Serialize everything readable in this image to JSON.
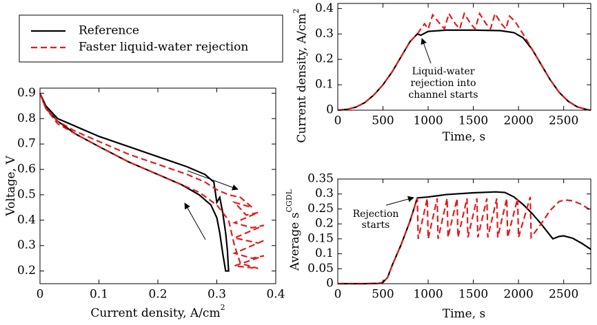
{
  "chart_data": [
    {
      "type": "line",
      "xlabel": "Current density, A/cm",
      "xlabel_sup": "2",
      "ylabel": "Voltage, V",
      "xlim": [
        0,
        0.4
      ],
      "ylim": [
        0.15,
        0.92
      ],
      "xticks": [
        0,
        0.1,
        0.2,
        0.3,
        0.4
      ],
      "yticks": [
        0.2,
        0.3,
        0.4,
        0.5,
        0.6,
        0.7,
        0.8,
        0.9
      ],
      "series": [
        {
          "name": "Reference",
          "color": "#000000",
          "linestyle": "solid",
          "x": [
            0,
            0.01,
            0.03,
            0.06,
            0.1,
            0.15,
            0.2,
            0.25,
            0.28,
            0.295,
            0.3,
            0.305,
            0.31,
            0.315,
            0.318,
            0.32,
            0.315,
            0.31,
            0.305,
            0.3,
            0.29,
            0.27,
            0.24,
            0.2,
            0.15,
            0.1,
            0.06,
            0.03,
            0.01,
            0
          ],
          "values": [
            0.9,
            0.85,
            0.8,
            0.77,
            0.73,
            0.69,
            0.65,
            0.61,
            0.58,
            0.55,
            0.47,
            0.49,
            0.43,
            0.35,
            0.28,
            0.2,
            0.2,
            0.27,
            0.35,
            0.41,
            0.46,
            0.5,
            0.54,
            0.58,
            0.63,
            0.69,
            0.74,
            0.79,
            0.84,
            0.9
          ]
        },
        {
          "name": "Faster liquid-water rejection",
          "color": "#e31a1c",
          "linestyle": "dashed",
          "x": [
            0,
            0.01,
            0.03,
            0.06,
            0.1,
            0.15,
            0.2,
            0.25,
            0.28,
            0.3,
            0.32,
            0.34,
            0.36,
            0.33,
            0.35,
            0.37,
            0.33,
            0.36,
            0.38,
            0.33,
            0.37,
            0.38,
            0.33,
            0.36,
            0.38,
            0.33,
            0.37,
            0.34,
            0.33,
            0.32,
            0.3,
            0.27,
            0.23,
            0.2,
            0.15,
            0.1,
            0.06,
            0.03,
            0.01,
            0
          ],
          "values": [
            0.9,
            0.84,
            0.79,
            0.75,
            0.71,
            0.66,
            0.62,
            0.58,
            0.55,
            0.52,
            0.5,
            0.49,
            0.45,
            0.47,
            0.42,
            0.43,
            0.39,
            0.37,
            0.38,
            0.33,
            0.31,
            0.32,
            0.27,
            0.25,
            0.26,
            0.22,
            0.21,
            0.23,
            0.3,
            0.4,
            0.46,
            0.51,
            0.55,
            0.58,
            0.63,
            0.69,
            0.74,
            0.78,
            0.84,
            0.9
          ]
        }
      ]
    },
    {
      "type": "line",
      "xlabel": "Time, s",
      "ylabel": "Current density, A/cm",
      "ylabel_sup": "2",
      "xlim": [
        0,
        2800
      ],
      "ylim": [
        0,
        0.42
      ],
      "xticks": [
        0,
        500,
        1000,
        1500,
        2000,
        2500
      ],
      "yticks": [
        0,
        0.1,
        0.2,
        0.3,
        0.4
      ],
      "annotation": [
        "Liquid-water",
        "rejection into",
        "channel starts"
      ],
      "series": [
        {
          "color": "#000000",
          "linestyle": "solid",
          "x": [
            0,
            100,
            200,
            300,
            400,
            500,
            600,
            700,
            800,
            880,
            920,
            1000,
            1200,
            1500,
            1800,
            1950,
            2050,
            2150,
            2250,
            2350,
            2450,
            2550,
            2650,
            2750,
            2800
          ],
          "values": [
            0,
            0.003,
            0.012,
            0.03,
            0.06,
            0.1,
            0.15,
            0.21,
            0.27,
            0.3,
            0.295,
            0.31,
            0.315,
            0.315,
            0.313,
            0.305,
            0.285,
            0.24,
            0.18,
            0.12,
            0.07,
            0.035,
            0.013,
            0.003,
            0
          ]
        },
        {
          "color": "#e31a1c",
          "linestyle": "dashed",
          "x": [
            0,
            100,
            200,
            300,
            400,
            500,
            600,
            700,
            800,
            880,
            960,
            1000,
            1050,
            1130,
            1180,
            1230,
            1300,
            1350,
            1400,
            1470,
            1520,
            1570,
            1640,
            1690,
            1740,
            1810,
            1860,
            1900,
            1960,
            2050,
            2150,
            2250,
            2350,
            2450,
            2550,
            2650,
            2750,
            2800
          ],
          "values": [
            0,
            0.003,
            0.012,
            0.03,
            0.06,
            0.1,
            0.15,
            0.21,
            0.27,
            0.3,
            0.34,
            0.32,
            0.375,
            0.34,
            0.32,
            0.38,
            0.34,
            0.32,
            0.38,
            0.34,
            0.32,
            0.38,
            0.34,
            0.32,
            0.38,
            0.34,
            0.32,
            0.37,
            0.35,
            0.3,
            0.24,
            0.18,
            0.12,
            0.07,
            0.035,
            0.013,
            0.003,
            0
          ]
        }
      ]
    },
    {
      "type": "line",
      "xlabel": "Time, s",
      "ylabel": "Average s",
      "ylabel_sup": "CGDL",
      "xlim": [
        0,
        2800
      ],
      "ylim": [
        0,
        0.35
      ],
      "xticks": [
        0,
        500,
        1000,
        1500,
        2000,
        2500
      ],
      "yticks": [
        0,
        0.05,
        0.1,
        0.15,
        0.2,
        0.25,
        0.3,
        0.35
      ],
      "annotation": [
        "Rejection",
        "starts"
      ],
      "series": [
        {
          "color": "#000000",
          "linestyle": "solid",
          "x": [
            0,
            300,
            450,
            500,
            550,
            600,
            700,
            800,
            880,
            1000,
            1200,
            1500,
            1750,
            1850,
            1950,
            2050,
            2150,
            2250,
            2380,
            2450,
            2500,
            2600,
            2700,
            2800
          ],
          "values": [
            0,
            0,
            0.001,
            0.005,
            0.02,
            0.06,
            0.13,
            0.21,
            0.287,
            0.29,
            0.298,
            0.304,
            0.307,
            0.305,
            0.29,
            0.265,
            0.235,
            0.2,
            0.15,
            0.158,
            0.16,
            0.152,
            0.135,
            0.115
          ]
        },
        {
          "color": "#e31a1c",
          "linestyle": "dashed",
          "x": [
            0,
            300,
            450,
            500,
            550,
            600,
            700,
            800,
            880,
            890,
            990,
            1000,
            1100,
            1110,
            1210,
            1220,
            1320,
            1330,
            1430,
            1440,
            1540,
            1550,
            1650,
            1660,
            1760,
            1770,
            1870,
            1880,
            1990,
            2000,
            2130,
            2140,
            2250,
            2350,
            2450,
            2520,
            2600,
            2700,
            2800
          ],
          "values": [
            0,
            0,
            0.001,
            0.005,
            0.02,
            0.06,
            0.13,
            0.21,
            0.287,
            0.15,
            0.285,
            0.15,
            0.285,
            0.15,
            0.285,
            0.155,
            0.285,
            0.155,
            0.285,
            0.155,
            0.285,
            0.155,
            0.285,
            0.155,
            0.285,
            0.155,
            0.285,
            0.155,
            0.285,
            0.155,
            0.29,
            0.155,
            0.2,
            0.245,
            0.275,
            0.28,
            0.277,
            0.265,
            0.245
          ]
        }
      ]
    }
  ]
}
